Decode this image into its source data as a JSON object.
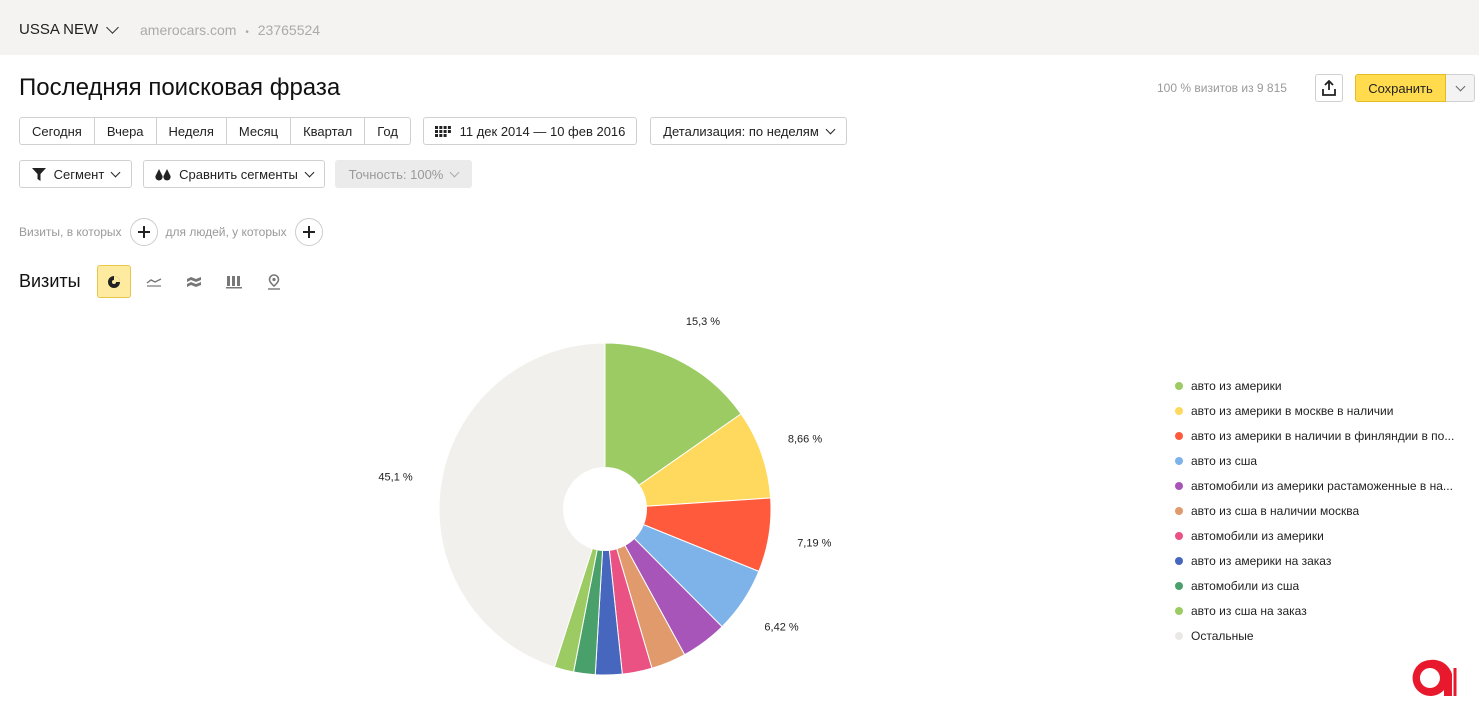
{
  "header": {
    "counter_name": "USSA NEW",
    "site": "amerocars.com",
    "separator": "•",
    "counter_id": "23765524"
  },
  "page": {
    "title": "Последняя поисковая фраза",
    "visits_share": "100 % визитов из 9 815"
  },
  "toolbar": {
    "save_label": "Сохранить",
    "periods": [
      "Сегодня",
      "Вчера",
      "Неделя",
      "Месяц",
      "Квартал",
      "Год"
    ],
    "date_range": "11 дек 2014 — 10 фев 2016",
    "detail_label": "Детализация: по неделям",
    "segment_label": "Сегмент",
    "compare_label": "Сравнить сегменты",
    "accuracy_label": "Точность: 100%"
  },
  "filters": {
    "visits_label": "Визиты, в которых",
    "people_label": "для людей, у которых"
  },
  "section": {
    "title": "Визиты",
    "views": [
      "pie-chart-icon",
      "line-chart-icon",
      "area-chart-icon",
      "bar-chart-icon",
      "map-icon"
    ],
    "active_view": "pie-chart-icon"
  },
  "chart_data": {
    "type": "pie",
    "donut": true,
    "slices": [
      {
        "label": "авто из америки",
        "value": 15.3,
        "display": "15,3 %",
        "color": "#9bcb62"
      },
      {
        "label": "авто из америки в москве в наличии",
        "value": 8.66,
        "display": "8,66 %",
        "color": "#ffd95e"
      },
      {
        "label": "авто из америки в наличии в финляндии в по...",
        "value": 7.19,
        "display": "7,19 %",
        "color": "#ff5a3c"
      },
      {
        "label": "авто из сша",
        "value": 6.42,
        "display": "6,42 %",
        "color": "#7db3e8"
      },
      {
        "label": "автомобили из америки растаможенные в на...",
        "value": 4.5,
        "display": "",
        "color": "#a855b9"
      },
      {
        "label": "авто из сша в наличии москва",
        "value": 3.4,
        "display": "",
        "color": "#e09a6c"
      },
      {
        "label": "автомобили из америки",
        "value": 2.9,
        "display": "",
        "color": "#ea5283"
      },
      {
        "label": "авто из америки на заказ",
        "value": 2.6,
        "display": "",
        "color": "#4766bd"
      },
      {
        "label": "автомобили из сша",
        "value": 2.1,
        "display": "",
        "color": "#4aa06a"
      },
      {
        "label": "авто из сша на заказ",
        "value": 1.9,
        "display": "",
        "color": "#9bcb62"
      },
      {
        "label": "Остальные",
        "value": 45.1,
        "display": "45,1 %",
        "color": "#f1f0ed"
      }
    ],
    "legend_position": "right"
  }
}
